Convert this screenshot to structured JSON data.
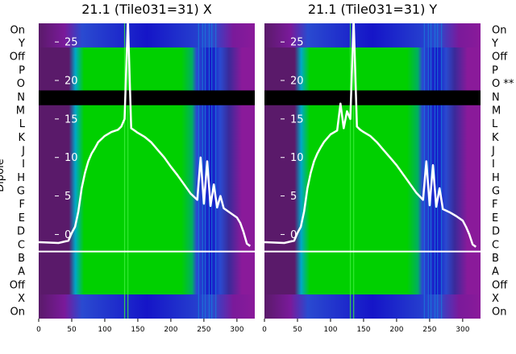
{
  "chart_data": [
    {
      "type": "heatmap",
      "title": "21.1 (Tile031=31) X",
      "ylabel": "Dipole",
      "x_ticks": [
        "0",
        "50",
        "100",
        "150",
        "200",
        "250",
        "300"
      ],
      "xlim": [
        0,
        327
      ],
      "row_labels": [
        "On",
        "Y",
        "Off",
        "P",
        "O",
        "N",
        "M",
        "L",
        "K",
        "J",
        "I",
        "H",
        "G",
        "F",
        "E",
        "D",
        "C",
        "B",
        "A",
        "Off",
        "X",
        "On"
      ],
      "overlay_ticks": [
        "25",
        "20",
        "15",
        "10",
        "5",
        "0"
      ],
      "overlay_range": [
        -2,
        27
      ],
      "flagged_row": "N",
      "spectrum": {
        "x": [
          0,
          30,
          45,
          50,
          55,
          60,
          65,
          70,
          75,
          80,
          85,
          90,
          100,
          110,
          120,
          125,
          130,
          135,
          140,
          145,
          150,
          160,
          170,
          180,
          190,
          200,
          210,
          220,
          230,
          240,
          245,
          250,
          255,
          260,
          265,
          270,
          275,
          280,
          290,
          300,
          305,
          310,
          315,
          320
        ],
        "y": [
          -1,
          -1.1,
          -0.8,
          0.2,
          1,
          3,
          6,
          8,
          9.5,
          10.5,
          11.2,
          12,
          12.8,
          13.3,
          13.6,
          14,
          15,
          28,
          13.8,
          13.5,
          13.2,
          12.7,
          12,
          11,
          10,
          8.8,
          7.7,
          6.5,
          5.3,
          4.5,
          10,
          4,
          9.5,
          3.7,
          6.5,
          3.5,
          5,
          3.4,
          2.8,
          2.2,
          1.5,
          0.3,
          -1.2,
          -1.5
        ]
      }
    },
    {
      "type": "heatmap",
      "title": "21.1 (Tile031=31) Y",
      "x_ticks": [
        "0",
        "50",
        "100",
        "150",
        "200",
        "250",
        "300"
      ],
      "xlim": [
        0,
        327
      ],
      "row_labels": [
        "On",
        "Y",
        "Off",
        "P",
        "O **",
        "N",
        "M",
        "L",
        "K",
        "J",
        "I",
        "H",
        "G",
        "F",
        "E",
        "D",
        "C",
        "B",
        "A",
        "Off",
        "X",
        "On"
      ],
      "overlay_ticks": [
        "25",
        "20",
        "15",
        "10",
        "5",
        "0"
      ],
      "overlay_range": [
        -2,
        27
      ],
      "flagged_row": "N",
      "spectrum": {
        "x": [
          0,
          30,
          45,
          50,
          55,
          60,
          65,
          70,
          75,
          80,
          85,
          90,
          100,
          110,
          115,
          120,
          125,
          130,
          135,
          140,
          145,
          150,
          160,
          170,
          180,
          190,
          200,
          210,
          220,
          230,
          240,
          245,
          250,
          255,
          260,
          265,
          270,
          280,
          290,
          300,
          305,
          310,
          315,
          320
        ],
        "y": [
          -1,
          -1.1,
          -0.8,
          0.2,
          1,
          3,
          6,
          8,
          9.5,
          10.5,
          11.3,
          12,
          13,
          13.5,
          17,
          13.8,
          16,
          15,
          28,
          14,
          13.6,
          13.3,
          12.8,
          12,
          11,
          10,
          9,
          7.8,
          6.6,
          5.4,
          4.5,
          9.5,
          3.8,
          9,
          3.6,
          6,
          3.3,
          2.9,
          2.4,
          1.8,
          1,
          0,
          -1.3,
          -1.6
        ]
      }
    }
  ],
  "colors": {
    "background_left": "#5a1a6a",
    "background_right": "#8a1a9a",
    "edge_blue": "#1515c8",
    "mid_blue": "#2a4ad0",
    "cyan": "#00a8c8",
    "band_green": "#00d000",
    "bright_green": "#20e810",
    "flag_row": "#000000",
    "overlay_line": "#ffffff"
  }
}
